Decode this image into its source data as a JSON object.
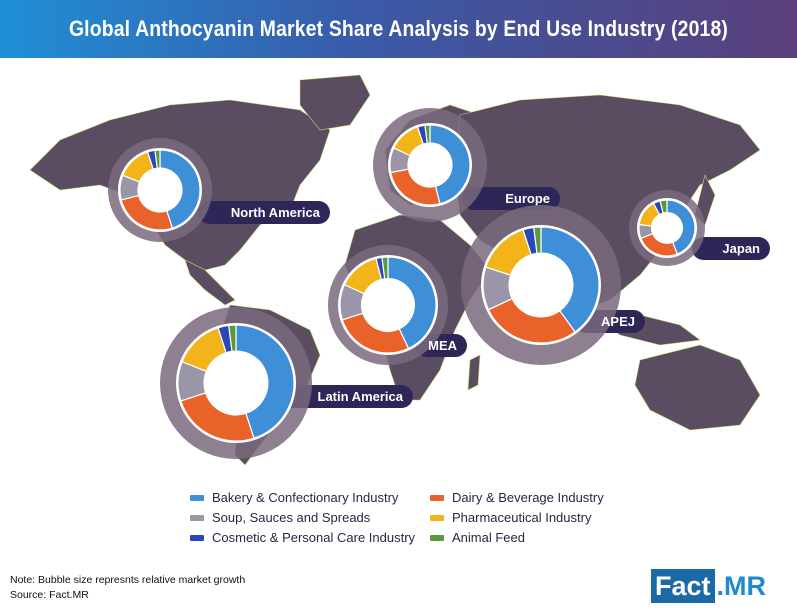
{
  "chart_data": {
    "type": "pie",
    "variant": "donut-bubbles-on-map",
    "title": "Global Anthocyanin Market Share Analysis by End Use Industry (2018)",
    "legend_position": "bottom",
    "categories": [
      "Bakery & Confectionary Industry",
      "Dairy & Beverage Industry",
      "Soup, Sauces and Spreads",
      "Pharmaceutical Industry",
      "Cosmetic & Personal Care Industry",
      "Animal Feed"
    ],
    "colors": [
      "#3f8fd8",
      "#e8622a",
      "#9a96a8",
      "#f2b418",
      "#2a46b8",
      "#5a9a3a"
    ],
    "series": [
      {
        "name": "North America",
        "values": [
          45,
          26,
          10,
          14,
          3,
          2
        ]
      },
      {
        "name": "Europe",
        "values": [
          46,
          26,
          10,
          13,
          3,
          2
        ]
      },
      {
        "name": "Japan",
        "values": [
          44,
          25,
          8,
          15,
          4,
          4
        ]
      },
      {
        "name": "APEJ",
        "values": [
          40,
          28,
          12,
          15,
          3,
          2
        ]
      },
      {
        "name": "MEA",
        "values": [
          43,
          27,
          12,
          14,
          2,
          2
        ]
      },
      {
        "name": "Latin America",
        "values": [
          45,
          25,
          11,
          14,
          3,
          2
        ]
      }
    ]
  },
  "header": {
    "title": "Global Anthocyanin Market Share Analysis by End Use Industry (2018)"
  },
  "legend": [
    {
      "label": "Bakery & Confectionary Industry",
      "color": "#3f8fd8"
    },
    {
      "label": "Dairy & Beverage Industry",
      "color": "#e8622a"
    },
    {
      "label": "Soup, Sauces and Spreads",
      "color": "#9a96a8"
    },
    {
      "label": "Pharmaceutical Industry",
      "color": "#f2b418"
    },
    {
      "label": "Cosmetic & Personal Care Industry",
      "color": "#2a46b8"
    },
    {
      "label": "Animal Feed",
      "color": "#5a9a3a"
    }
  ],
  "footer": {
    "note": "Note: Bubble size represnts relative market growth",
    "source": "Source: Fact.MR",
    "logo_fact": "Fact",
    "logo_mr": ".MR"
  }
}
